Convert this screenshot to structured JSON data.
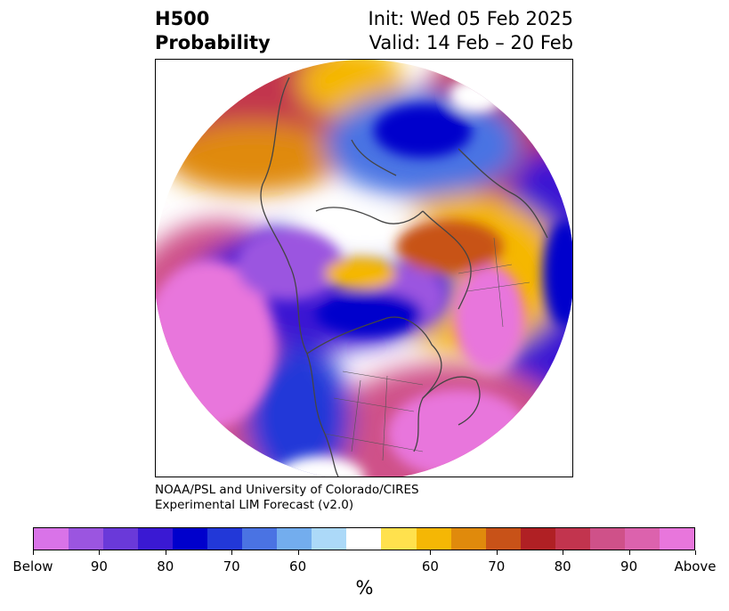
{
  "header": {
    "variable": "H500",
    "field": "Probability",
    "init": "Init: Wed 05 Feb 2025",
    "valid": "Valid: 14 Feb – 20 Feb"
  },
  "credit": {
    "line1": "NOAA/PSL and University of Colorado/CIRES",
    "line2": "Experimental LIM Forecast (v2.0)"
  },
  "colorbar": {
    "colors": [
      "#d973e8",
      "#9b55e0",
      "#6a39d9",
      "#3a19d3",
      "#0000cc",
      "#2238d8",
      "#4a73e3",
      "#73adee",
      "#acd9f8",
      "#ffffff",
      "#ffe14d",
      "#f5b705",
      "#e08a0c",
      "#c85218",
      "#b02024",
      "#c2344e",
      "#cf5189",
      "#dc62ad",
      "#e876dc"
    ],
    "labels": [
      "Below",
      "90",
      "80",
      "70",
      "60",
      "60",
      "70",
      "80",
      "90",
      "Above"
    ],
    "unit": "%"
  }
}
